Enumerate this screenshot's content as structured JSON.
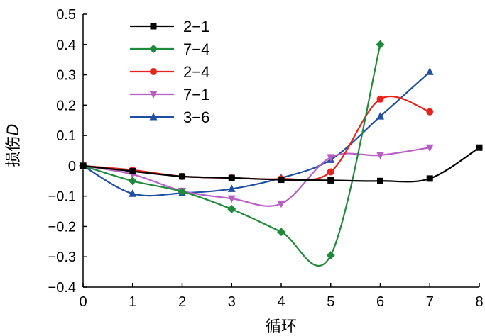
{
  "chart_data": {
    "type": "line",
    "xlabel": "循环",
    "ylabel_main": "损伤",
    "ylabel_var": "D",
    "xlim": [
      0,
      8
    ],
    "ylim": [
      -0.4,
      0.5
    ],
    "x_ticks": [
      "0",
      "1",
      "2",
      "3",
      "4",
      "5",
      "6",
      "7",
      "8"
    ],
    "y_ticks": [
      "0.5",
      "0.4",
      "0.3",
      "0.2",
      "0.1",
      "0",
      "−0.1",
      "−0.2",
      "−0.3",
      "−0.4"
    ],
    "legend_position": "top-left",
    "grid": false,
    "series": [
      {
        "name": "2−1",
        "color": "#000000",
        "marker": "square",
        "x": [
          0,
          1,
          2,
          3,
          4,
          5,
          6,
          7,
          8
        ],
        "y": [
          0,
          -0.018,
          -0.035,
          -0.04,
          -0.046,
          -0.048,
          -0.05,
          -0.042,
          0.06
        ]
      },
      {
        "name": "7−4",
        "color": "#1f8a3a",
        "marker": "diamond",
        "x": [
          0,
          1,
          2,
          3,
          4,
          5,
          6
        ],
        "y": [
          0,
          -0.05,
          -0.085,
          -0.143,
          -0.218,
          -0.295,
          0.4
        ]
      },
      {
        "name": "2−4",
        "color": "#e8231c",
        "marker": "circle",
        "x": [
          0,
          1,
          2,
          3,
          4,
          5,
          6,
          7
        ],
        "y": [
          0,
          -0.014,
          -0.035,
          -0.04,
          -0.043,
          -0.02,
          0.22,
          0.178
        ]
      },
      {
        "name": "7−1",
        "color": "#b85fc4",
        "marker": "triangle-down",
        "x": [
          0,
          1,
          2,
          3,
          4,
          5,
          6,
          7
        ],
        "y": [
          0,
          -0.028,
          -0.083,
          -0.108,
          -0.125,
          0.028,
          0.035,
          0.06
        ]
      },
      {
        "name": "3−6",
        "color": "#1f4fa0",
        "marker": "triangle-up",
        "x": [
          0,
          1,
          2,
          3,
          4,
          5,
          6,
          7
        ],
        "y": [
          0,
          -0.092,
          -0.09,
          -0.076,
          -0.04,
          0.02,
          0.163,
          0.31
        ]
      }
    ]
  }
}
